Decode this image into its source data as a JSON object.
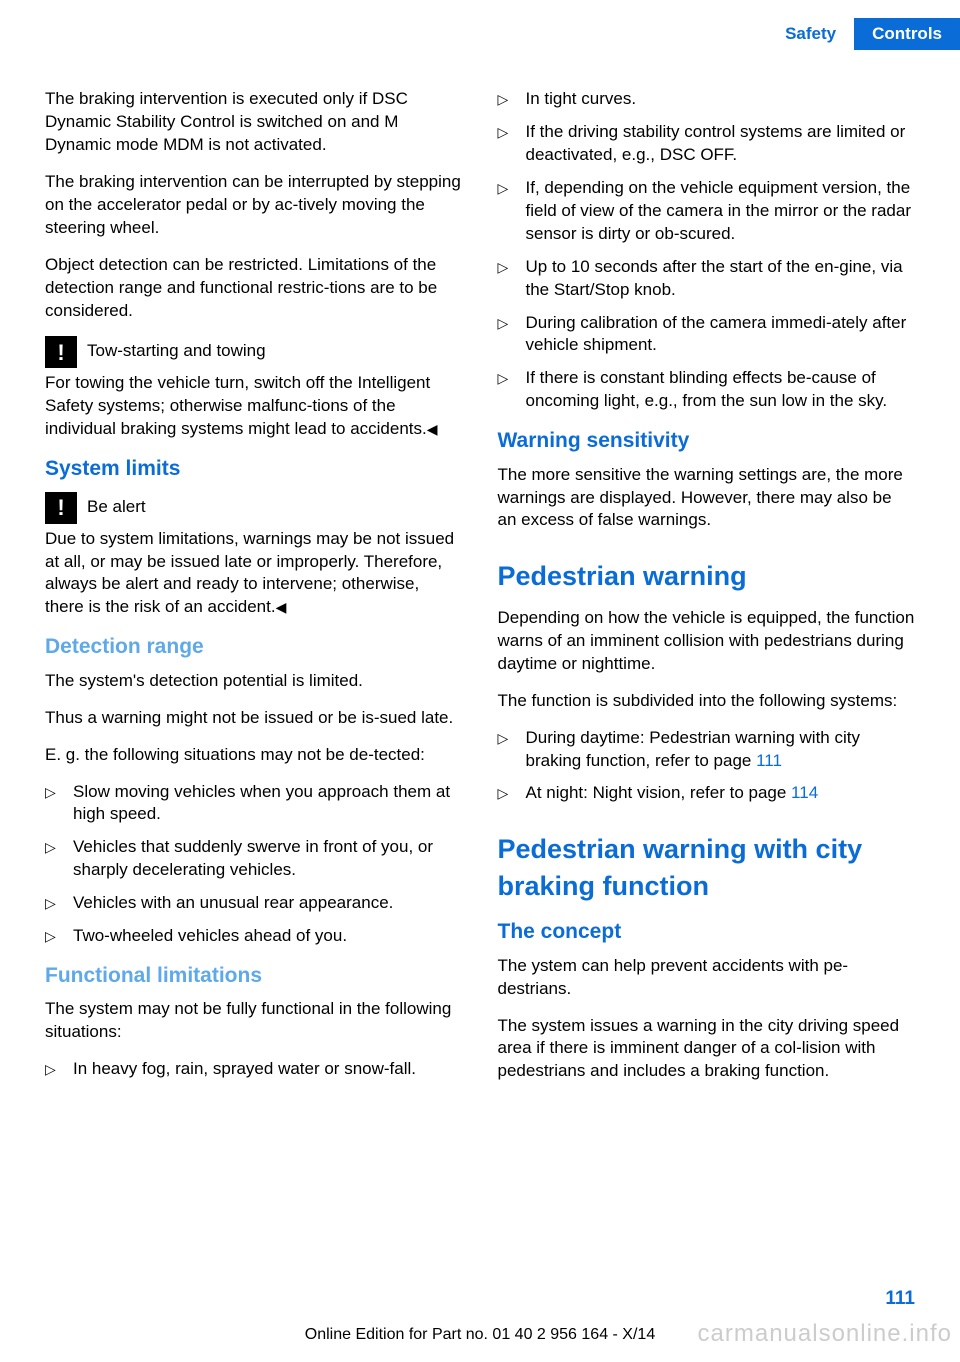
{
  "header": {
    "tab1": "Safety",
    "tab2": "Controls"
  },
  "left": {
    "p1": "The braking intervention is executed only if DSC Dynamic Stability Control is switched on and M Dynamic mode MDM is not activated.",
    "p2": "The braking intervention can be interrupted by stepping on the accelerator pedal or by ac‐tively moving the steering wheel.",
    "p3": "Object detection can be restricted. Limitations of the detection range and functional restric‐tions are to be considered.",
    "warn1_title": "Tow-starting and towing",
    "warn1_body": "For towing the vehicle turn, switch off the Intelligent Safety systems; otherwise malfunc‐tions of the individual braking systems might lead to accidents.",
    "h_system_limits": "System limits",
    "warn2_title": "Be alert",
    "warn2_body": "Due to system limitations, warnings may be not issued at all, or may be issued late or improperly. Therefore, always be alert and ready to intervene; otherwise, there is the risk of an accident.",
    "h_detection": "Detection range",
    "det_p1": "The system's detection potential is limited.",
    "det_p2": "Thus a warning might not be issued or be is‐sued late.",
    "det_p3": "E. g. the following situations may not be de‐tected:",
    "det_items": [
      "Slow moving vehicles when you approach them at high speed.",
      "Vehicles that suddenly swerve in front of you, or sharply decelerating vehicles.",
      "Vehicles with an unusual rear appearance.",
      "Two-wheeled vehicles ahead of you."
    ],
    "h_functional": "Functional limitations",
    "func_p1": "The system may not be fully functional in the following situations:",
    "func_items": [
      "In heavy fog, rain, sprayed water or snow‐fall."
    ]
  },
  "right": {
    "func_items2": [
      "In tight curves.",
      "If the driving stability control systems are limited or deactivated, e.g., DSC OFF.",
      "If, depending on the vehicle equipment version, the field of view of the camera in the mirror or the radar sensor is dirty or ob‐scured.",
      "Up to 10 seconds after the start of the en‐gine, via the Start/Stop knob.",
      "During calibration of the camera immedi‐ately after vehicle shipment.",
      "If there is constant blinding effects be‐cause of oncoming light, e.g., from the sun low in the sky."
    ],
    "h_warning_sens": "Warning sensitivity",
    "ws_p1": "The more sensitive the warning settings are, the more warnings are displayed. However, there may also be an excess of false warnings.",
    "h_pedestrian": "Pedestrian warning",
    "pw_p1": "Depending on how the vehicle is equipped, the function warns of an imminent collision with pedestrians during daytime or nighttime.",
    "pw_p2": "The function is subdivided into the following systems:",
    "pw_item1_a": "During daytime: Pedestrian warning with city braking function, refer to page ",
    "pw_item1_b": "111",
    "pw_item2_a": "At night: Night vision, refer to page ",
    "pw_item2_b": "114",
    "h_pwcb": "Pedestrian warning with city braking function",
    "h_concept": "The concept",
    "c_p1": "The ystem can help prevent accidents with pe‐destrians.",
    "c_p2": "The system issues a warning in the city driving speed area if there is imminent danger of a col‐lision with pedestrians and includes a braking function."
  },
  "page_number": "111",
  "footer": "Online Edition for Part no. 01 40 2 956 164 - X/14",
  "watermark": "carmanualsonline.info"
}
